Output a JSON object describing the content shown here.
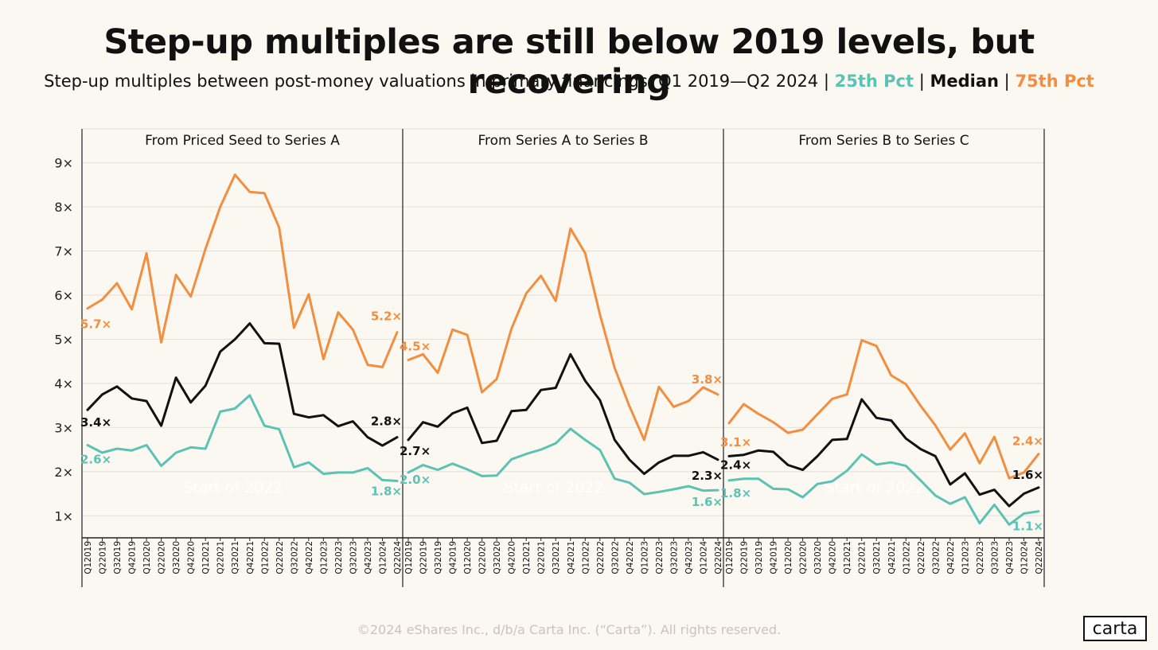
{
  "title": "Step-up multiples are still below 2019 levels, but recovering",
  "subtitle": {
    "main": "Step-up multiples between post-money valuations in primary financings, Q1 2019—Q2 2024",
    "sep": "|",
    "p25": "25th Pct",
    "median": "Median",
    "p75": "75th Pct"
  },
  "footer": "©2024 eShares Inc., d/b/a Carta Inc. (“Carta”). All rights reserved.",
  "logo": "carta",
  "colors": {
    "p25": "#5cc2b4",
    "median": "#111111",
    "p75": "#f28e3f",
    "grid": "#e4dfd8",
    "axis": "#222222"
  },
  "chart_data": [
    {
      "type": "line",
      "title": "From Priced Seed to Series A",
      "categories": [
        "Q1 2019",
        "Q2 2019",
        "Q3 2019",
        "Q4 2019",
        "Q1 2020",
        "Q2 2020",
        "Q3 2020",
        "Q4 2020",
        "Q1 2021",
        "Q2 2021",
        "Q3 2021",
        "Q4 2021",
        "Q1 2022",
        "Q2 2022",
        "Q3 2022",
        "Q4 2022",
        "Q1 2023",
        "Q2 2023",
        "Q3 2023",
        "Q4 2023",
        "Q1 2024",
        "Q2 2024"
      ],
      "ylim": [
        0.5,
        9.3
      ],
      "yticks": [
        "1×",
        "2×",
        "3×",
        "4×",
        "5×",
        "6×",
        "7×",
        "8×",
        "9×"
      ],
      "annotation": "Start of 2022",
      "series": [
        {
          "name": "75th Pct",
          "values": [
            5.7,
            5.9,
            6.27,
            5.68,
            6.95,
            4.93,
            6.46,
            5.97,
            7.05,
            8.0,
            8.73,
            8.34,
            8.31,
            7.53,
            5.26,
            6.02,
            4.55,
            5.61,
            5.22,
            4.42,
            4.37,
            5.16
          ],
          "start_label": "5.7×",
          "end_label": "5.2×"
        },
        {
          "name": "Median",
          "values": [
            3.4,
            3.75,
            3.93,
            3.66,
            3.6,
            3.04,
            4.13,
            3.57,
            3.95,
            4.72,
            5.0,
            5.36,
            4.91,
            4.9,
            3.31,
            3.23,
            3.28,
            3.03,
            3.14,
            2.78,
            2.59,
            2.78
          ],
          "start_label": "3.4×",
          "end_label": "2.8×"
        },
        {
          "name": "25th Pct",
          "values": [
            2.6,
            2.43,
            2.52,
            2.48,
            2.6,
            2.13,
            2.43,
            2.55,
            2.52,
            3.36,
            3.43,
            3.73,
            3.04,
            2.96,
            2.1,
            2.21,
            1.95,
            1.98,
            1.98,
            2.08,
            1.81,
            1.79
          ],
          "start_label": "2.6×",
          "end_label": "1.8×"
        }
      ]
    },
    {
      "type": "line",
      "title": "From Series A to Series B",
      "categories": [
        "Q1 2019",
        "Q2 2019",
        "Q3 2019",
        "Q4 2019",
        "Q1 2020",
        "Q2 2020",
        "Q3 2020",
        "Q4 2020",
        "Q1 2021",
        "Q2 2021",
        "Q3 2021",
        "Q4 2021",
        "Q1 2022",
        "Q2 2022",
        "Q3 2022",
        "Q4 2022",
        "Q1 2023",
        "Q2 2023",
        "Q3 2023",
        "Q4 2023",
        "Q1 2024",
        "Q2 2024"
      ],
      "ylim": [
        0.5,
        9.3
      ],
      "annotation": "Start of 2022",
      "series": [
        {
          "name": "75th Pct",
          "values": [
            4.53,
            4.66,
            4.24,
            5.22,
            5.1,
            3.8,
            4.1,
            5.24,
            6.04,
            6.44,
            5.87,
            7.51,
            6.95,
            5.56,
            4.35,
            3.48,
            2.72,
            3.92,
            3.47,
            3.6,
            3.91,
            3.75
          ],
          "start_label": "4.5×",
          "end_label": "3.8×"
        },
        {
          "name": "Median",
          "values": [
            2.72,
            3.12,
            3.02,
            3.32,
            3.45,
            2.65,
            2.7,
            3.37,
            3.4,
            3.85,
            3.9,
            4.66,
            4.06,
            3.62,
            2.72,
            2.27,
            1.95,
            2.21,
            2.36,
            2.36,
            2.44,
            2.27
          ],
          "start_label": "2.7×",
          "end_label": "2.3×"
        },
        {
          "name": "25th Pct",
          "values": [
            1.98,
            2.15,
            2.04,
            2.18,
            2.05,
            1.9,
            1.91,
            2.28,
            2.4,
            2.5,
            2.64,
            2.97,
            2.72,
            2.49,
            1.84,
            1.75,
            1.49,
            1.54,
            1.6,
            1.67,
            1.57,
            1.58
          ],
          "start_label": "2.0×",
          "end_label": "1.6×"
        }
      ]
    },
    {
      "type": "line",
      "title": "From Series B to Series C",
      "categories": [
        "Q1 2019",
        "Q2 2019",
        "Q3 2019",
        "Q4 2019",
        "Q1 2020",
        "Q2 2020",
        "Q3 2020",
        "Q4 2020",
        "Q1 2021",
        "Q2 2021",
        "Q3 2021",
        "Q4 2021",
        "Q1 2022",
        "Q2 2022",
        "Q3 2022",
        "Q4 2022",
        "Q1 2023",
        "Q2 2023",
        "Q3 2023",
        "Q4 2023",
        "Q1 2024",
        "Q2 2024"
      ],
      "ylim": [
        0.5,
        9.3
      ],
      "annotation": "Start of 2022",
      "series": [
        {
          "name": "75th Pct",
          "values": [
            3.1,
            3.53,
            3.31,
            3.12,
            2.88,
            2.95,
            3.3,
            3.65,
            3.75,
            4.98,
            4.85,
            4.18,
            3.98,
            3.49,
            3.05,
            2.5,
            2.87,
            2.19,
            2.79,
            1.85,
            1.98,
            2.4
          ],
          "start_label": "3.1×",
          "end_label": "2.4×"
        },
        {
          "name": "Median",
          "values": [
            2.35,
            2.38,
            2.48,
            2.45,
            2.15,
            2.04,
            2.35,
            2.72,
            2.74,
            3.64,
            3.22,
            3.16,
            2.75,
            2.51,
            2.35,
            1.71,
            1.96,
            1.48,
            1.59,
            1.22,
            1.5,
            1.64
          ],
          "start_label": "2.4×",
          "end_label": "1.6×"
        },
        {
          "name": "25th Pct",
          "values": [
            1.8,
            1.84,
            1.84,
            1.61,
            1.6,
            1.42,
            1.72,
            1.78,
            2.02,
            2.39,
            2.16,
            2.21,
            2.13,
            1.8,
            1.46,
            1.27,
            1.42,
            0.83,
            1.25,
            0.8,
            1.05,
            1.1
          ],
          "start_label": "1.8×",
          "end_label": "1.1×"
        }
      ]
    }
  ]
}
